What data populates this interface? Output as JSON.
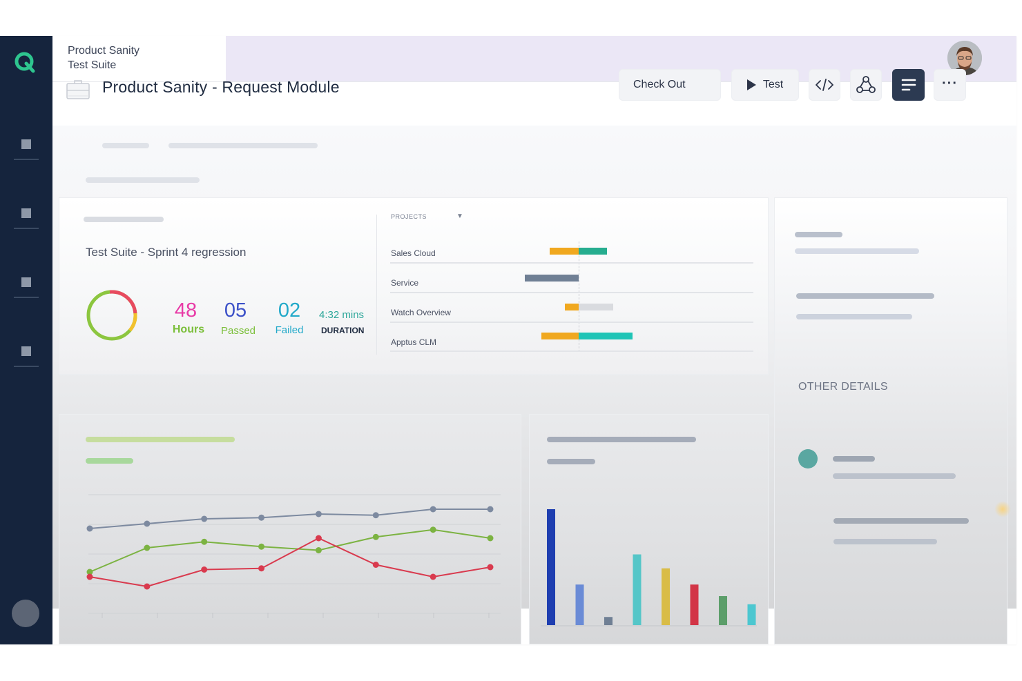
{
  "app": {
    "suite_name_line1": "Product Sanity",
    "suite_name_line2": "Test Suite",
    "page_title": "Product Sanity - Request Module"
  },
  "toolbar": {
    "checkout_label": "Check Out",
    "test_label": "Test",
    "more_label": "···",
    "icons": [
      "code-icon",
      "share-network-icon",
      "document-icon"
    ]
  },
  "summary": {
    "suite_title": "Test Suite - Sprint 4 regression",
    "hours_value": "48",
    "hours_label": "Hours",
    "passed_value": "05",
    "passed_label": "Passed",
    "failed_value": "02",
    "failed_label": "Failed",
    "duration_value": "4:32 mins",
    "duration_label": "DURATION"
  },
  "projects": {
    "label": "PROJECTS",
    "dropdown_icon": "caret-down-icon",
    "items": [
      {
        "name": "Sales Cloud",
        "left_value": 0.28,
        "right_value": 0.27,
        "left_color": "#f0a81f",
        "right_color": "#26ad8f"
      },
      {
        "name": "Service",
        "left_value": 0.52,
        "right_value": 0.0,
        "left_color": "#6f7f94",
        "right_color": "#6f7f94"
      },
      {
        "name": "Watch Overview",
        "left_value": 0.13,
        "right_value": 0.33,
        "left_color": "#f0a81f",
        "right_color": "#d9dbdf"
      },
      {
        "name": "Apptus CLM",
        "left_value": 0.36,
        "right_value": 0.52,
        "left_color": "#f0a81f",
        "right_color": "#1fc4b6"
      }
    ]
  },
  "other_details_label": "OTHER DETAILS",
  "colors": {
    "sidebar": "#15243d",
    "accent_dark": "#2c3a52",
    "donut_green": "#8cc63f",
    "donut_red": "#e84a5f",
    "donut_yellow": "#f2c12e"
  },
  "line_chart": {
    "type": "line",
    "x": [
      1,
      2,
      3,
      4,
      5,
      6,
      7,
      8
    ],
    "series": [
      {
        "color": "#7d8aa0",
        "values": [
          68,
          72,
          76,
          77,
          80,
          79,
          84,
          84
        ]
      },
      {
        "color": "#7cb342",
        "values": [
          32,
          52,
          57,
          53,
          50,
          61,
          67,
          60
        ]
      },
      {
        "color": "#d93a4e",
        "values": [
          28,
          20,
          34,
          35,
          60,
          38,
          28,
          36
        ]
      }
    ],
    "ylim": [
      0,
      100
    ],
    "grid": true
  },
  "bar_chart": {
    "type": "bar",
    "values": [
      100,
      35,
      7,
      61,
      49,
      35,
      25,
      18
    ],
    "colors": [
      "#1e3eb0",
      "#6a8bd6",
      "#6f7f94",
      "#55c6c8",
      "#d9bc47",
      "#d23547",
      "#5c9e6a",
      "#4cc7d0"
    ],
    "ylim": [
      0,
      100
    ]
  }
}
